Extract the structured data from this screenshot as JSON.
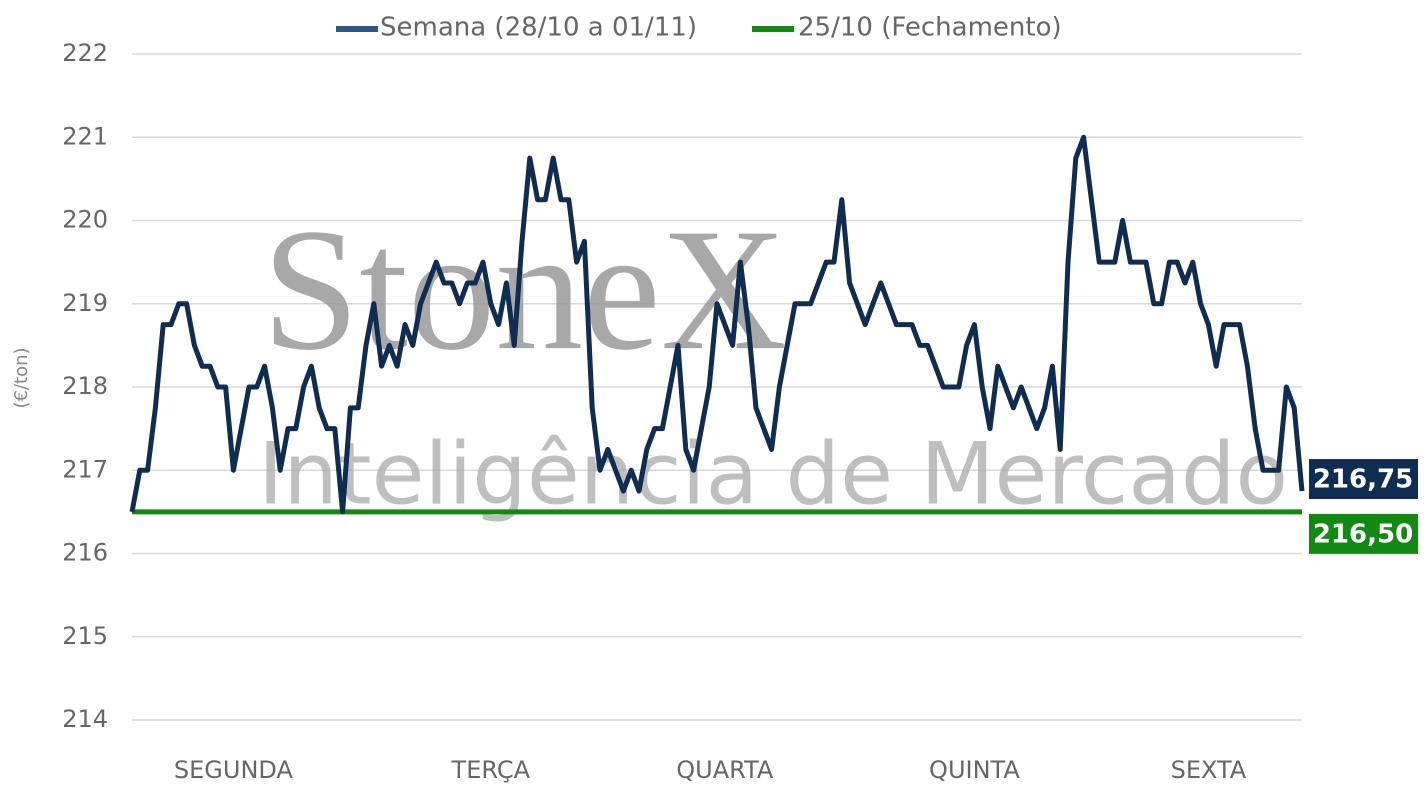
{
  "chart_data": {
    "type": "line",
    "y_label": "(€/ton)",
    "watermark": {
      "brand": "StoneX",
      "tagline": "Inteligência de Mercado"
    },
    "ylim": [
      214,
      222
    ],
    "yticks": [
      214,
      215,
      216,
      217,
      218,
      219,
      220,
      221,
      222
    ],
    "grid": true,
    "xlim": [
      0,
      150
    ],
    "xticks": [
      {
        "value": 13,
        "label": "SEGUNDA"
      },
      {
        "value": 46,
        "label": "TERÇA"
      },
      {
        "value": 76,
        "label": "QUARTA"
      },
      {
        "value": 108,
        "label": "QUINTA"
      },
      {
        "value": 138,
        "label": "SEXTA"
      }
    ],
    "series": [
      {
        "name": "Semana (28/10 a 01/11)",
        "color": "#0f2d52",
        "values": [
          216.5,
          217,
          217,
          217.75,
          218.75,
          218.75,
          219,
          219,
          218.5,
          218.25,
          218.25,
          218,
          218,
          217,
          217.5,
          218,
          218,
          218.25,
          217.75,
          217,
          217.5,
          217.5,
          218,
          218.25,
          217.75,
          217.5,
          217.5,
          216.5,
          217.75,
          217.75,
          218.5,
          219,
          218.25,
          218.5,
          218.25,
          218.75,
          218.5,
          219,
          219.25,
          219.5,
          219.25,
          219.25,
          219,
          219.25,
          219.25,
          219.5,
          219,
          218.75,
          219.25,
          218.5,
          219.75,
          220.75,
          220.25,
          220.25,
          220.75,
          220.25,
          220.25,
          219.5,
          219.75,
          217.75,
          217,
          217.25,
          217,
          216.75,
          217,
          216.75,
          217.25,
          217.5,
          217.5,
          218,
          218.5,
          217.25,
          217,
          217.5,
          218,
          219,
          218.75,
          218.5,
          219.5,
          218.75,
          217.75,
          217.5,
          217.25,
          218,
          218.5,
          219,
          219,
          219,
          219.25,
          219.5,
          219.5,
          220.25,
          219.25,
          219,
          218.75,
          219,
          219.25,
          219,
          218.75,
          218.75,
          218.75,
          218.5,
          218.5,
          218.25,
          218,
          218,
          218,
          218.5,
          218.75,
          218,
          217.5,
          218.25,
          218,
          217.75,
          218,
          217.75,
          217.5,
          217.75,
          218.25,
          217.25,
          219.5,
          220.75,
          221,
          220.25,
          219.5,
          219.5,
          219.5,
          220,
          219.5,
          219.5,
          219.5,
          219,
          219,
          219.5,
          219.5,
          219.25,
          219.5,
          219,
          218.75,
          218.25,
          218.75,
          218.75,
          218.75,
          218.25,
          217.5,
          217,
          217,
          217,
          218,
          217.75,
          216.75
        ],
        "value_labels": [
          null,
          null,
          null,
          null,
          null,
          null,
          null,
          null,
          null,
          null,
          null,
          null,
          null,
          null,
          null,
          null,
          null,
          null,
          null,
          null,
          null,
          null,
          null,
          null,
          null,
          null,
          null,
          null,
          null,
          null,
          null,
          null,
          null,
          null,
          null,
          null,
          null,
          null,
          null,
          null,
          null,
          null,
          null,
          null,
          null,
          null,
          null,
          null,
          null,
          null,
          null,
          null,
          null,
          null,
          null,
          null,
          null,
          null,
          null,
          null,
          null,
          null,
          null,
          null,
          null,
          null,
          null,
          null,
          null,
          null,
          null,
          null,
          null,
          null,
          null,
          null,
          null,
          null,
          null,
          null,
          null,
          null,
          null,
          null,
          null,
          null,
          null,
          null,
          null,
          null,
          null,
          null,
          null,
          null,
          null,
          null,
          null,
          null,
          null,
          null,
          null,
          null,
          null,
          null,
          null,
          null,
          null,
          null,
          null,
          null,
          null,
          null,
          null,
          null,
          null,
          null,
          null,
          null,
          null,
          null,
          null,
          null,
          null,
          null,
          null,
          null,
          null,
          null,
          null,
          null,
          null,
          null,
          null,
          null,
          null,
          null,
          null,
          null,
          null,
          null,
          null,
          null,
          null,
          null,
          null,
          null,
          null,
          null,
          null,
          null,
          "216,75"
        ]
      },
      {
        "name": "25/10 (Fechamento)",
        "color": "#118a11",
        "values": [
          216.5
        ],
        "value_labels": [
          "216,50"
        ]
      }
    ]
  }
}
